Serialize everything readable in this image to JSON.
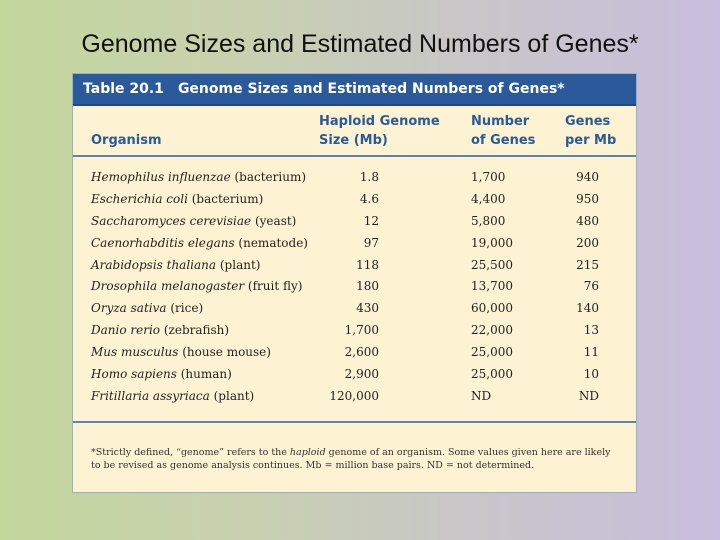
{
  "slide_title": "Genome Sizes and Estimated Numbers of Genes*",
  "table": {
    "number": "Table 20.1",
    "caption": "Genome Sizes and Estimated Numbers of Genes*",
    "headers": {
      "organism": "Organism",
      "size_line1": "Haploid Genome",
      "size_line2": "Size (Mb)",
      "genes_line1": "Number",
      "genes_line2": "of Genes",
      "per_line1": "Genes",
      "per_line2": "per Mb"
    },
    "rows": [
      {
        "species": "Hemophilus influenzae",
        "common": " (bacterium)",
        "size": "1.8",
        "genes": "1,700",
        "per_mb": "940"
      },
      {
        "species": "Escherichia coli",
        "common": " (bacterium)",
        "size": "4.6",
        "genes": "4,400",
        "per_mb": "950"
      },
      {
        "species": "Saccharomyces cerevisiae",
        "common": " (yeast)",
        "size": "12",
        "genes": "5,800",
        "per_mb": "480"
      },
      {
        "species": "Caenorhabditis elegans",
        "common": " (nematode)",
        "size": "97",
        "genes": "19,000",
        "per_mb": "200"
      },
      {
        "species": "Arabidopsis thaliana",
        "common": " (plant)",
        "size": "118",
        "genes": "25,500",
        "per_mb": "215"
      },
      {
        "species": "Drosophila melanogaster",
        "common": " (fruit fly)",
        "size": "180",
        "genes": "13,700",
        "per_mb": "76"
      },
      {
        "species": "Oryza sativa",
        "common": " (rice)",
        "size": "430",
        "genes": "60,000",
        "per_mb": "140"
      },
      {
        "species": "Danio rerio",
        "common": " (zebrafish)",
        "size": "1,700",
        "genes": "22,000",
        "per_mb": "13"
      },
      {
        "species": "Mus musculus",
        "common": " (house mouse)",
        "size": "2,600",
        "genes": "25,000",
        "per_mb": "11"
      },
      {
        "species": "Homo sapiens",
        "common": " (human)",
        "size": "2,900",
        "genes": "25,000",
        "per_mb": "10"
      },
      {
        "species": "Fritillaria assyriaca",
        "common": " (plant)",
        "size": "120,000",
        "genes": "ND",
        "per_mb": "ND"
      }
    ],
    "footnote": {
      "part1": "*Strictly defined, “genome” refers to the ",
      "italic": "haploid",
      "part2": " genome of an organism. Some values given here are likely to be revised as genome analysis continues. Mb = million base pairs. ND = not determined."
    }
  }
}
